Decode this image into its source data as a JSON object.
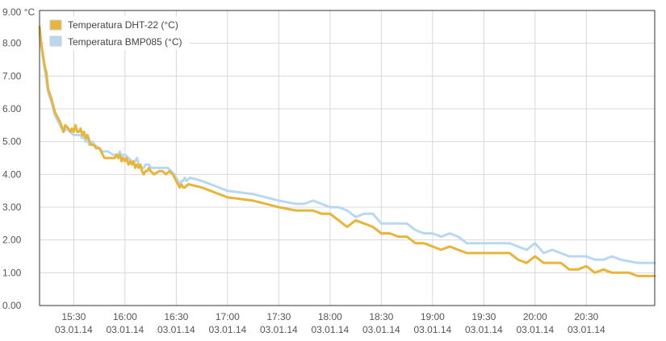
{
  "chart_data": {
    "type": "line",
    "title": "",
    "xlabel": "",
    "ylabel": "",
    "ylim": [
      0,
      9
    ],
    "xlim": [
      "15:10",
      "21:10"
    ],
    "y_ticks": [
      "0.00",
      "1.00",
      "2.00",
      "3.00",
      "4.00",
      "5.00",
      "6.00",
      "7.00",
      "8.00",
      "9.00 °C"
    ],
    "x_ticks": [
      {
        "time": "15:30",
        "date": "03.01.14"
      },
      {
        "time": "16:00",
        "date": "03.01.14"
      },
      {
        "time": "16:30",
        "date": "03.01.14"
      },
      {
        "time": "17:00",
        "date": "03.01.14"
      },
      {
        "time": "17:30",
        "date": "03.01.14"
      },
      {
        "time": "18:00",
        "date": "03.01.14"
      },
      {
        "time": "18:30",
        "date": "03.01.14"
      },
      {
        "time": "19:00",
        "date": "03.01.14"
      },
      {
        "time": "19:30",
        "date": "03.01.14"
      },
      {
        "time": "20:00",
        "date": "03.01.14"
      },
      {
        "time": "20:30",
        "date": "03.01.14"
      }
    ],
    "grid": true,
    "legend_position": "top-left",
    "series": [
      {
        "name": "Temperatura DHT-22 (°C)",
        "color": "#e8b53a",
        "points": [
          [
            "15:10",
            8.5
          ],
          [
            "15:11",
            8.0
          ],
          [
            "15:13",
            7.3
          ],
          [
            "15:14",
            7.1
          ],
          [
            "15:15",
            6.6
          ],
          [
            "15:17",
            6.3
          ],
          [
            "15:19",
            5.9
          ],
          [
            "15:22",
            5.6
          ],
          [
            "15:24",
            5.3
          ],
          [
            "15:25",
            5.5
          ],
          [
            "15:27",
            5.4
          ],
          [
            "15:28",
            5.3
          ],
          [
            "15:29",
            5.4
          ],
          [
            "15:30",
            5.3
          ],
          [
            "15:31",
            5.5
          ],
          [
            "15:32",
            5.3
          ],
          [
            "15:33",
            5.3
          ],
          [
            "15:34",
            5.4
          ],
          [
            "15:35",
            5.2
          ],
          [
            "15:36",
            5.3
          ],
          [
            "15:37",
            5.1
          ],
          [
            "15:38",
            5.2
          ],
          [
            "15:40",
            4.9
          ],
          [
            "15:42",
            4.9
          ],
          [
            "15:43",
            4.8
          ],
          [
            "15:45",
            4.8
          ],
          [
            "15:47",
            4.6
          ],
          [
            "15:48",
            4.5
          ],
          [
            "15:54",
            4.5
          ],
          [
            "15:55",
            4.6
          ],
          [
            "15:56",
            4.5
          ],
          [
            "15:57",
            4.6
          ],
          [
            "15:58",
            4.4
          ],
          [
            "15:59",
            4.5
          ],
          [
            "16:00",
            4.4
          ],
          [
            "16:01",
            4.5
          ],
          [
            "16:02",
            4.3
          ],
          [
            "16:03",
            4.4
          ],
          [
            "16:04",
            4.3
          ],
          [
            "16:05",
            4.4
          ],
          [
            "16:06",
            4.2
          ],
          [
            "16:07",
            4.3
          ],
          [
            "16:08",
            4.2
          ],
          [
            "16:09",
            4.3
          ],
          [
            "16:10",
            4.1
          ],
          [
            "16:11",
            4.0
          ],
          [
            "16:12",
            4.1
          ],
          [
            "16:13",
            4.1
          ],
          [
            "16:14",
            4.2
          ],
          [
            "16:15",
            4.1
          ],
          [
            "16:17",
            4.0
          ],
          [
            "16:20",
            4.1
          ],
          [
            "16:22",
            4.1
          ],
          [
            "16:24",
            4.0
          ],
          [
            "16:26",
            4.1
          ],
          [
            "16:28",
            4.0
          ],
          [
            "16:29",
            3.9
          ],
          [
            "16:30",
            3.8
          ],
          [
            "16:31",
            3.7
          ],
          [
            "16:32",
            3.6
          ],
          [
            "16:33",
            3.7
          ],
          [
            "16:34",
            3.6
          ],
          [
            "16:35",
            3.6
          ],
          [
            "16:37",
            3.7
          ],
          [
            "16:45",
            3.6
          ],
          [
            "16:50",
            3.5
          ],
          [
            "17:00",
            3.3
          ],
          [
            "17:15",
            3.2
          ],
          [
            "17:30",
            3.0
          ],
          [
            "17:40",
            2.9
          ],
          [
            "17:50",
            2.9
          ],
          [
            "17:55",
            2.8
          ],
          [
            "18:00",
            2.8
          ],
          [
            "18:05",
            2.6
          ],
          [
            "18:10",
            2.4
          ],
          [
            "18:15",
            2.6
          ],
          [
            "18:20",
            2.5
          ],
          [
            "18:25",
            2.4
          ],
          [
            "18:30",
            2.2
          ],
          [
            "18:35",
            2.2
          ],
          [
            "18:40",
            2.1
          ],
          [
            "18:45",
            2.1
          ],
          [
            "18:50",
            1.9
          ],
          [
            "18:55",
            1.9
          ],
          [
            "19:00",
            1.8
          ],
          [
            "19:05",
            1.7
          ],
          [
            "19:10",
            1.8
          ],
          [
            "19:15",
            1.7
          ],
          [
            "19:20",
            1.6
          ],
          [
            "19:30",
            1.6
          ],
          [
            "19:40",
            1.6
          ],
          [
            "19:45",
            1.6
          ],
          [
            "19:50",
            1.4
          ],
          [
            "19:55",
            1.3
          ],
          [
            "20:00",
            1.5
          ],
          [
            "20:05",
            1.3
          ],
          [
            "20:10",
            1.3
          ],
          [
            "20:15",
            1.3
          ],
          [
            "20:20",
            1.1
          ],
          [
            "20:25",
            1.1
          ],
          [
            "20:30",
            1.2
          ],
          [
            "20:35",
            1.0
          ],
          [
            "20:40",
            1.1
          ],
          [
            "20:45",
            1.0
          ],
          [
            "20:50",
            1.0
          ],
          [
            "20:55",
            1.0
          ],
          [
            "21:00",
            0.9
          ],
          [
            "21:10",
            0.9
          ]
        ]
      },
      {
        "name": "Temperatura BMP085 (°C)",
        "color": "#b8d8f2",
        "points": [
          [
            "15:10",
            8.3
          ],
          [
            "15:11",
            7.9
          ],
          [
            "15:13",
            7.2
          ],
          [
            "15:15",
            6.5
          ],
          [
            "15:17",
            6.2
          ],
          [
            "15:19",
            5.8
          ],
          [
            "15:22",
            5.5
          ],
          [
            "15:24",
            5.3
          ],
          [
            "15:26",
            5.4
          ],
          [
            "15:28",
            5.3
          ],
          [
            "15:30",
            5.2
          ],
          [
            "15:34",
            5.2
          ],
          [
            "15:35",
            5.1
          ],
          [
            "15:36",
            5.2
          ],
          [
            "15:37",
            5.0
          ],
          [
            "15:38",
            5.1
          ],
          [
            "15:39",
            4.9
          ],
          [
            "15:41",
            5.0
          ],
          [
            "15:42",
            4.9
          ],
          [
            "15:45",
            4.8
          ],
          [
            "15:47",
            4.7
          ],
          [
            "15:50",
            4.7
          ],
          [
            "15:53",
            4.6
          ],
          [
            "15:56",
            4.6
          ],
          [
            "15:57",
            4.7
          ],
          [
            "15:58",
            4.5
          ],
          [
            "15:59",
            4.6
          ],
          [
            "16:00",
            4.6
          ],
          [
            "16:02",
            4.5
          ],
          [
            "16:04",
            4.4
          ],
          [
            "16:06",
            4.4
          ],
          [
            "16:07",
            4.5
          ],
          [
            "16:08",
            4.3
          ],
          [
            "16:10",
            4.2
          ],
          [
            "16:11",
            4.2
          ],
          [
            "16:12",
            4.3
          ],
          [
            "16:14",
            4.3
          ],
          [
            "16:15",
            4.2
          ],
          [
            "16:20",
            4.2
          ],
          [
            "16:25",
            4.2
          ],
          [
            "16:27",
            4.1
          ],
          [
            "16:29",
            4.0
          ],
          [
            "16:30",
            3.9
          ],
          [
            "16:31",
            3.8
          ],
          [
            "16:32",
            3.7
          ],
          [
            "16:33",
            3.8
          ],
          [
            "16:34",
            3.8
          ],
          [
            "16:35",
            3.9
          ],
          [
            "16:36",
            3.8
          ],
          [
            "16:38",
            3.9
          ],
          [
            "16:45",
            3.8
          ],
          [
            "16:50",
            3.7
          ],
          [
            "17:00",
            3.5
          ],
          [
            "17:15",
            3.4
          ],
          [
            "17:30",
            3.2
          ],
          [
            "17:40",
            3.1
          ],
          [
            "17:45",
            3.1
          ],
          [
            "17:50",
            3.2
          ],
          [
            "17:55",
            3.1
          ],
          [
            "18:00",
            3.0
          ],
          [
            "18:05",
            3.0
          ],
          [
            "18:10",
            2.9
          ],
          [
            "18:15",
            2.7
          ],
          [
            "18:20",
            2.8
          ],
          [
            "18:25",
            2.8
          ],
          [
            "18:30",
            2.5
          ],
          [
            "18:40",
            2.5
          ],
          [
            "18:45",
            2.5
          ],
          [
            "18:50",
            2.3
          ],
          [
            "18:55",
            2.2
          ],
          [
            "19:00",
            2.2
          ],
          [
            "19:05",
            2.1
          ],
          [
            "19:10",
            2.2
          ],
          [
            "19:15",
            2.1
          ],
          [
            "19:20",
            1.9
          ],
          [
            "19:30",
            1.9
          ],
          [
            "19:40",
            1.9
          ],
          [
            "19:45",
            1.9
          ],
          [
            "19:50",
            1.8
          ],
          [
            "19:55",
            1.7
          ],
          [
            "20:00",
            1.9
          ],
          [
            "20:05",
            1.6
          ],
          [
            "20:10",
            1.7
          ],
          [
            "20:15",
            1.6
          ],
          [
            "20:20",
            1.5
          ],
          [
            "20:25",
            1.5
          ],
          [
            "20:30",
            1.5
          ],
          [
            "20:35",
            1.4
          ],
          [
            "20:40",
            1.4
          ],
          [
            "20:45",
            1.5
          ],
          [
            "20:50",
            1.4
          ],
          [
            "21:00",
            1.3
          ],
          [
            "21:10",
            1.3
          ]
        ]
      }
    ]
  }
}
